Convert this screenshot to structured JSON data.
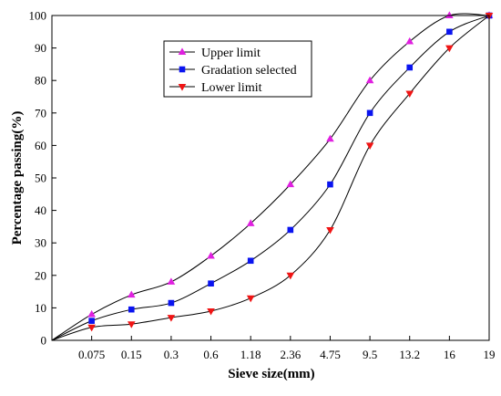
{
  "chart_data": {
    "type": "line",
    "xlabel": "Sieve size(mm)",
    "ylabel": "Percentage passing(%)",
    "categories": [
      "",
      "0.075",
      "0.15",
      "0.3",
      "0.6",
      "1.18",
      "2.36",
      "4.75",
      "9.5",
      "13.2",
      "16",
      "19"
    ],
    "ylim": [
      0,
      100
    ],
    "yticks": [
      0,
      10,
      20,
      30,
      40,
      50,
      60,
      70,
      80,
      90,
      100
    ],
    "grid": false,
    "legend_position": "top-center",
    "series": [
      {
        "name": "Upper limit",
        "marker": "triangle-up",
        "color": "#e020e0",
        "values": [
          0,
          8,
          14,
          18,
          26,
          36,
          48,
          62,
          80,
          92,
          100,
          100
        ]
      },
      {
        "name": "Gradation selected",
        "marker": "square",
        "color": "#0a14f0",
        "values": [
          0,
          6,
          9.5,
          11.5,
          17.5,
          24.5,
          34,
          48,
          70,
          84,
          95,
          100
        ]
      },
      {
        "name": "Lower limit",
        "marker": "triangle-down",
        "color": "#f01414",
        "values": [
          0,
          4,
          5,
          7,
          9,
          13,
          20,
          34,
          60,
          76,
          90,
          100
        ]
      }
    ]
  }
}
